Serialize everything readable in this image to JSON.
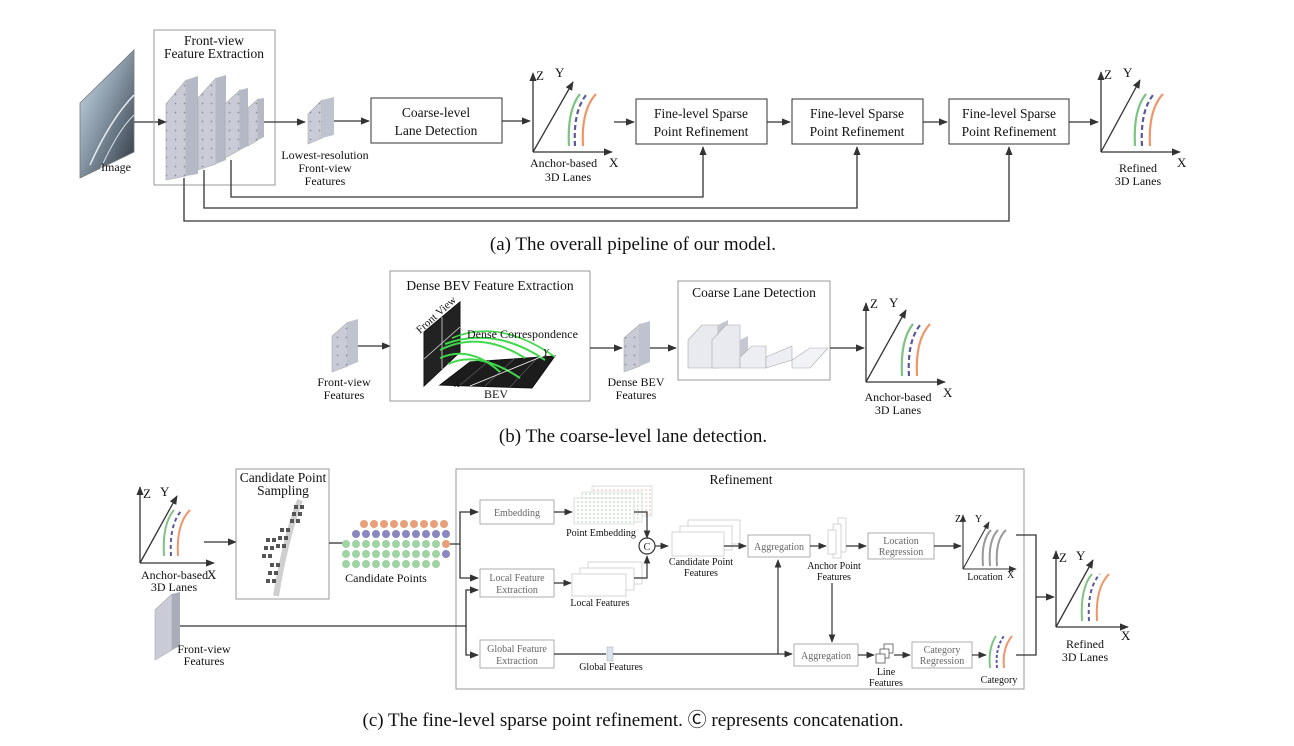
{
  "panel_a": {
    "caption": "(a) The overall pipeline of our model.",
    "image_label": "Image",
    "frontview_title_1": "Front-view",
    "frontview_title_2": "Feature Extraction",
    "lowres_1": "Lowest-resolution",
    "lowres_2": "Front-view",
    "lowres_3": "Features",
    "coarse_1": "Coarse-level",
    "coarse_2": "Lane Detection",
    "anchor_1": "Anchor-based",
    "anchor_2": "3D Lanes",
    "fine_1": "Fine-level Sparse",
    "fine_2": "Point Refinement",
    "refined_1": "Refined",
    "refined_2": "3D Lanes",
    "axis_x": "X",
    "axis_y": "Y",
    "axis_z": "Z"
  },
  "panel_b": {
    "caption": "(b) The coarse-level lane detection.",
    "fv_1": "Front-view",
    "fv_2": "Features",
    "dense_bev_title": "Dense BEV Feature Extraction",
    "front_view": "Front View",
    "dense_corr": "Dense Correspondence",
    "bev": "BEV",
    "y_label": "Y",
    "x_label": "X",
    "dense_feat_1": "Dense BEV",
    "dense_feat_2": "Features",
    "coarse_title": "Coarse Lane Detection",
    "anchor_1": "Anchor-based",
    "anchor_2": "3D Lanes"
  },
  "panel_c": {
    "caption": "(c) The fine-level sparse point refinement. Ⓒ represents concatenation.",
    "anchor_1": "Anchor-based",
    "anchor_2": "3D Lanes",
    "cand_sampling_1": "Candidate Point",
    "cand_sampling_2": "Sampling",
    "cand_points": "Candidate Points",
    "fv_1": "Front-view",
    "fv_2": "Features",
    "refinement": "Refinement",
    "embedding": "Embedding",
    "point_embedding": "Point Embedding",
    "concat": "C",
    "local_fe_1": "Local Feature",
    "local_fe_2": "Extraction",
    "local_features": "Local Features",
    "global_fe_1": "Global Feature",
    "global_fe_2": "Extraction",
    "global_features": "Global Features",
    "cpf_1": "Candidate Point",
    "cpf_2": "Features",
    "aggregation": "Aggregation",
    "apf_1": "Anchor Point",
    "apf_2": "Features",
    "loc_reg_1": "Location",
    "loc_reg_2": "Regression",
    "location": "Location",
    "cat_reg_1": "Category",
    "cat_reg_2": "Regression",
    "category": "Category",
    "line_1": "Line",
    "line_2": "Features",
    "refined_1": "Refined",
    "refined_2": "3D Lanes"
  },
  "colors": {
    "lane_green": "#7dc383",
    "lane_orange": "#f0956a",
    "lane_dashed": "#5a5a9a",
    "corr_green": "#3fd84a",
    "dot_green": "#9fd3a3",
    "dot_orange": "#e8a07a",
    "dot_purple": "#8a86c0"
  }
}
